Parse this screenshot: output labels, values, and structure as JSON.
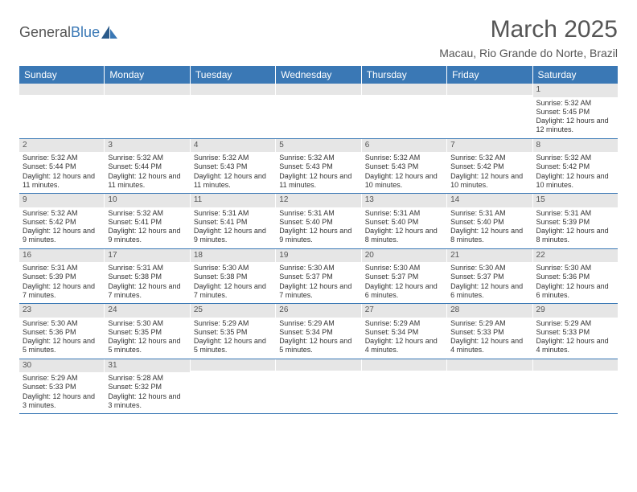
{
  "brand": {
    "part1": "General",
    "part2": "Blue"
  },
  "title": "March 2025",
  "location": "Macau, Rio Grande do Norte, Brazil",
  "colors": {
    "header_bar": "#3a78b5",
    "daynum_bg": "#e6e6e6",
    "text": "#555555"
  },
  "day_headers": [
    "Sunday",
    "Monday",
    "Tuesday",
    "Wednesday",
    "Thursday",
    "Friday",
    "Saturday"
  ],
  "weeks": [
    [
      null,
      null,
      null,
      null,
      null,
      null,
      {
        "n": "1",
        "sr": "Sunrise: 5:32 AM",
        "ss": "Sunset: 5:45 PM",
        "dl": "Daylight: 12 hours and 12 minutes."
      }
    ],
    [
      {
        "n": "2",
        "sr": "Sunrise: 5:32 AM",
        "ss": "Sunset: 5:44 PM",
        "dl": "Daylight: 12 hours and 11 minutes."
      },
      {
        "n": "3",
        "sr": "Sunrise: 5:32 AM",
        "ss": "Sunset: 5:44 PM",
        "dl": "Daylight: 12 hours and 11 minutes."
      },
      {
        "n": "4",
        "sr": "Sunrise: 5:32 AM",
        "ss": "Sunset: 5:43 PM",
        "dl": "Daylight: 12 hours and 11 minutes."
      },
      {
        "n": "5",
        "sr": "Sunrise: 5:32 AM",
        "ss": "Sunset: 5:43 PM",
        "dl": "Daylight: 12 hours and 11 minutes."
      },
      {
        "n": "6",
        "sr": "Sunrise: 5:32 AM",
        "ss": "Sunset: 5:43 PM",
        "dl": "Daylight: 12 hours and 10 minutes."
      },
      {
        "n": "7",
        "sr": "Sunrise: 5:32 AM",
        "ss": "Sunset: 5:42 PM",
        "dl": "Daylight: 12 hours and 10 minutes."
      },
      {
        "n": "8",
        "sr": "Sunrise: 5:32 AM",
        "ss": "Sunset: 5:42 PM",
        "dl": "Daylight: 12 hours and 10 minutes."
      }
    ],
    [
      {
        "n": "9",
        "sr": "Sunrise: 5:32 AM",
        "ss": "Sunset: 5:42 PM",
        "dl": "Daylight: 12 hours and 9 minutes."
      },
      {
        "n": "10",
        "sr": "Sunrise: 5:32 AM",
        "ss": "Sunset: 5:41 PM",
        "dl": "Daylight: 12 hours and 9 minutes."
      },
      {
        "n": "11",
        "sr": "Sunrise: 5:31 AM",
        "ss": "Sunset: 5:41 PM",
        "dl": "Daylight: 12 hours and 9 minutes."
      },
      {
        "n": "12",
        "sr": "Sunrise: 5:31 AM",
        "ss": "Sunset: 5:40 PM",
        "dl": "Daylight: 12 hours and 9 minutes."
      },
      {
        "n": "13",
        "sr": "Sunrise: 5:31 AM",
        "ss": "Sunset: 5:40 PM",
        "dl": "Daylight: 12 hours and 8 minutes."
      },
      {
        "n": "14",
        "sr": "Sunrise: 5:31 AM",
        "ss": "Sunset: 5:40 PM",
        "dl": "Daylight: 12 hours and 8 minutes."
      },
      {
        "n": "15",
        "sr": "Sunrise: 5:31 AM",
        "ss": "Sunset: 5:39 PM",
        "dl": "Daylight: 12 hours and 8 minutes."
      }
    ],
    [
      {
        "n": "16",
        "sr": "Sunrise: 5:31 AM",
        "ss": "Sunset: 5:39 PM",
        "dl": "Daylight: 12 hours and 7 minutes."
      },
      {
        "n": "17",
        "sr": "Sunrise: 5:31 AM",
        "ss": "Sunset: 5:38 PM",
        "dl": "Daylight: 12 hours and 7 minutes."
      },
      {
        "n": "18",
        "sr": "Sunrise: 5:30 AM",
        "ss": "Sunset: 5:38 PM",
        "dl": "Daylight: 12 hours and 7 minutes."
      },
      {
        "n": "19",
        "sr": "Sunrise: 5:30 AM",
        "ss": "Sunset: 5:37 PM",
        "dl": "Daylight: 12 hours and 7 minutes."
      },
      {
        "n": "20",
        "sr": "Sunrise: 5:30 AM",
        "ss": "Sunset: 5:37 PM",
        "dl": "Daylight: 12 hours and 6 minutes."
      },
      {
        "n": "21",
        "sr": "Sunrise: 5:30 AM",
        "ss": "Sunset: 5:37 PM",
        "dl": "Daylight: 12 hours and 6 minutes."
      },
      {
        "n": "22",
        "sr": "Sunrise: 5:30 AM",
        "ss": "Sunset: 5:36 PM",
        "dl": "Daylight: 12 hours and 6 minutes."
      }
    ],
    [
      {
        "n": "23",
        "sr": "Sunrise: 5:30 AM",
        "ss": "Sunset: 5:36 PM",
        "dl": "Daylight: 12 hours and 5 minutes."
      },
      {
        "n": "24",
        "sr": "Sunrise: 5:30 AM",
        "ss": "Sunset: 5:35 PM",
        "dl": "Daylight: 12 hours and 5 minutes."
      },
      {
        "n": "25",
        "sr": "Sunrise: 5:29 AM",
        "ss": "Sunset: 5:35 PM",
        "dl": "Daylight: 12 hours and 5 minutes."
      },
      {
        "n": "26",
        "sr": "Sunrise: 5:29 AM",
        "ss": "Sunset: 5:34 PM",
        "dl": "Daylight: 12 hours and 5 minutes."
      },
      {
        "n": "27",
        "sr": "Sunrise: 5:29 AM",
        "ss": "Sunset: 5:34 PM",
        "dl": "Daylight: 12 hours and 4 minutes."
      },
      {
        "n": "28",
        "sr": "Sunrise: 5:29 AM",
        "ss": "Sunset: 5:33 PM",
        "dl": "Daylight: 12 hours and 4 minutes."
      },
      {
        "n": "29",
        "sr": "Sunrise: 5:29 AM",
        "ss": "Sunset: 5:33 PM",
        "dl": "Daylight: 12 hours and 4 minutes."
      }
    ],
    [
      {
        "n": "30",
        "sr": "Sunrise: 5:29 AM",
        "ss": "Sunset: 5:33 PM",
        "dl": "Daylight: 12 hours and 3 minutes."
      },
      {
        "n": "31",
        "sr": "Sunrise: 5:28 AM",
        "ss": "Sunset: 5:32 PM",
        "dl": "Daylight: 12 hours and 3 minutes."
      },
      null,
      null,
      null,
      null,
      null
    ]
  ]
}
